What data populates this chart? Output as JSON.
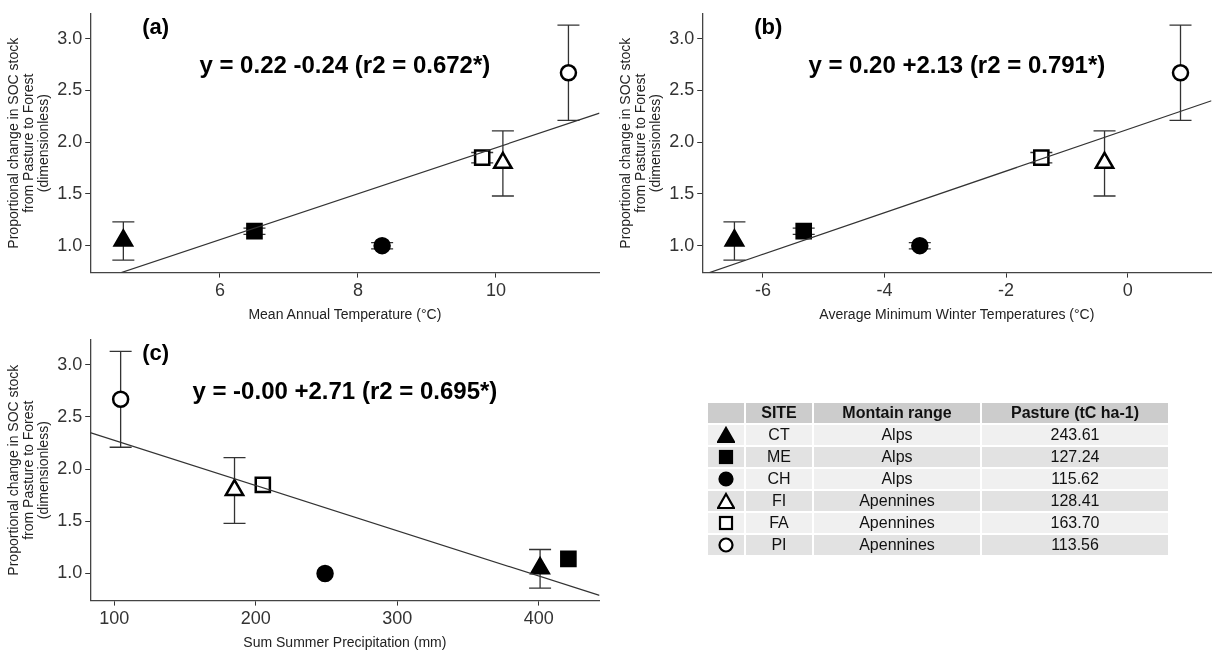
{
  "chart_data": [
    {
      "type": "scatter",
      "title": "(a)",
      "xlabel": "Mean Annual Temperature (°C)",
      "ylabel": "Proportional change in SOC stock\nfrom Pasture to Forest\n(dimensionless)",
      "annotations": [
        "y = 0.22 -0.24 (r2 = 0.672*)"
      ],
      "xlim": [
        4.12,
        11.5
      ],
      "xticks": [
        6,
        8,
        10
      ],
      "ylim": [
        0.74,
        3.24
      ],
      "yticks": [
        {
          "value": 1,
          "label": "1.0"
        },
        {
          "value": 1.5,
          "label": "1.5"
        },
        {
          "value": 2,
          "label": "2.0"
        },
        {
          "value": 2.5,
          "label": "2.5"
        },
        {
          "value": 3,
          "label": "3.0"
        }
      ],
      "grid": false,
      "legend": false,
      "series": [
        {
          "marker": "triangle",
          "color": "#000000",
          "x": [
            4.6
          ],
          "values": [
            1.05
          ],
          "errors": [
            [
              0.86,
              1.23
            ]
          ]
        },
        {
          "marker": "square",
          "color": "#000000",
          "x": [
            6.5
          ],
          "values": [
            1.14
          ],
          "errors": [
            0.03
          ]
        },
        {
          "marker": "circle",
          "color": "#000000",
          "x": [
            8.35
          ],
          "values": [
            1.0
          ],
          "errors": [
            0.03
          ]
        },
        {
          "marker": "triangle",
          "color": "#ffffff",
          "x": [
            10.1
          ],
          "values": [
            1.8
          ],
          "errors": [
            [
              1.48,
              2.11
            ]
          ]
        },
        {
          "marker": "square",
          "color": "#ffffff",
          "x": [
            9.8
          ],
          "values": [
            1.85
          ],
          "errors": [
            0.05
          ]
        },
        {
          "marker": "circle",
          "color": "#ffffff",
          "x": [
            11.05
          ],
          "values": [
            2.67
          ],
          "errors": [
            [
              2.21,
              3.13
            ]
          ]
        },
        {
          "type": "line",
          "marker": "none",
          "color": "#333333",
          "x": [
            4.57,
            11.5
          ],
          "values": [
            0.74,
            2.28
          ]
        }
      ]
    },
    {
      "type": "scatter",
      "title": "(b)",
      "xlabel": "Average Minimum Winter Temperatures (°C)",
      "ylabel": "Proportional change in SOC stock\nfrom Pasture to Forest\n(dimensionless)",
      "annotations": [
        "y = 0.20 +2.13 (r2 = 0.791*)"
      ],
      "xlim": [
        -7.0,
        1.38
      ],
      "xticks": [
        -6,
        -4,
        -2,
        0
      ],
      "ylim": [
        0.74,
        3.24
      ],
      "yticks": [
        {
          "value": 1,
          "label": "1.0"
        },
        {
          "value": 1.5,
          "label": "1.5"
        },
        {
          "value": 2,
          "label": "2.0"
        },
        {
          "value": 2.5,
          "label": "2.5"
        },
        {
          "value": 3,
          "label": "3.0"
        }
      ],
      "grid": false,
      "legend": false,
      "series": [
        {
          "marker": "triangle",
          "color": "#000000",
          "x": [
            -6.47
          ],
          "values": [
            1.05
          ],
          "errors": [
            [
              0.86,
              1.23
            ]
          ]
        },
        {
          "marker": "square",
          "color": "#000000",
          "x": [
            -5.33
          ],
          "values": [
            1.14
          ],
          "errors": [
            0.03
          ]
        },
        {
          "marker": "circle",
          "color": "#000000",
          "x": [
            -3.42
          ],
          "values": [
            1.0
          ],
          "errors": [
            0.03
          ]
        },
        {
          "marker": "triangle",
          "color": "#ffffff",
          "x": [
            -0.38
          ],
          "values": [
            1.8
          ],
          "errors": [
            [
              1.48,
              2.11
            ]
          ]
        },
        {
          "marker": "square",
          "color": "#ffffff",
          "x": [
            -1.42
          ],
          "values": [
            1.85
          ],
          "errors": [
            0.05
          ]
        },
        {
          "marker": "circle",
          "color": "#ffffff",
          "x": [
            0.87
          ],
          "values": [
            2.67
          ],
          "errors": [
            [
              2.21,
              3.13
            ]
          ]
        },
        {
          "type": "line",
          "marker": "none",
          "color": "#333333",
          "x": [
            -6.88,
            1.38
          ],
          "values": [
            0.74,
            2.4
          ]
        }
      ]
    },
    {
      "type": "scatter",
      "title": "(c)",
      "xlabel": "Sum Summer Precipitation (mm)",
      "ylabel": "Proportional change in SOC stock\nfrom Pasture to Forest\n(dimensionless)",
      "annotations": [
        "y = -0.00 +2.71 (r2 = 0.695*)"
      ],
      "xlim": [
        83,
        443
      ],
      "xticks": [
        100,
        200,
        300,
        400
      ],
      "ylim": [
        0.74,
        3.24
      ],
      "yticks": [
        {
          "value": 1,
          "label": "1.0"
        },
        {
          "value": 1.5,
          "label": "1.5"
        },
        {
          "value": 2,
          "label": "2.0"
        },
        {
          "value": 2.5,
          "label": "2.5"
        },
        {
          "value": 3,
          "label": "3.0"
        }
      ],
      "grid": false,
      "legend": false,
      "series": [
        {
          "marker": "triangle",
          "color": "#000000",
          "x": [
            401
          ],
          "values": [
            1.05
          ],
          "errors": [
            [
              0.86,
              1.23
            ]
          ]
        },
        {
          "marker": "square",
          "color": "#000000",
          "x": [
            421
          ],
          "values": [
            1.14
          ]
        },
        {
          "marker": "circle",
          "color": "#000000",
          "x": [
            249
          ],
          "values": [
            1.0
          ]
        },
        {
          "marker": "triangle",
          "color": "#ffffff",
          "x": [
            185
          ],
          "values": [
            1.8
          ],
          "errors": [
            [
              1.48,
              2.11
            ]
          ]
        },
        {
          "marker": "square",
          "color": "#ffffff",
          "x": [
            205
          ],
          "values": [
            1.85
          ]
        },
        {
          "marker": "circle",
          "color": "#ffffff",
          "x": [
            104.5
          ],
          "values": [
            2.67
          ],
          "errors": [
            [
              2.21,
              3.13
            ]
          ]
        },
        {
          "type": "line",
          "marker": "none",
          "color": "#333333",
          "x": [
            83,
            443
          ],
          "values": [
            2.35,
            0.79
          ]
        }
      ]
    },
    {
      "type": "other",
      "categories": [
        null,
        "SITE",
        "Montain range",
        "Pasture (tC ha-1)"
      ],
      "cell_labels": [
        [
          "CT",
          "Alps",
          "243.61"
        ],
        [
          "ME",
          "Alps",
          "127.24"
        ],
        [
          "CH",
          "Alps",
          "115.62"
        ],
        [
          "FI",
          "Apennines",
          "128.41"
        ],
        [
          "FA",
          "Apennines",
          "163.70"
        ],
        [
          "PI",
          "Apennines",
          "113.56"
        ]
      ]
    }
  ]
}
